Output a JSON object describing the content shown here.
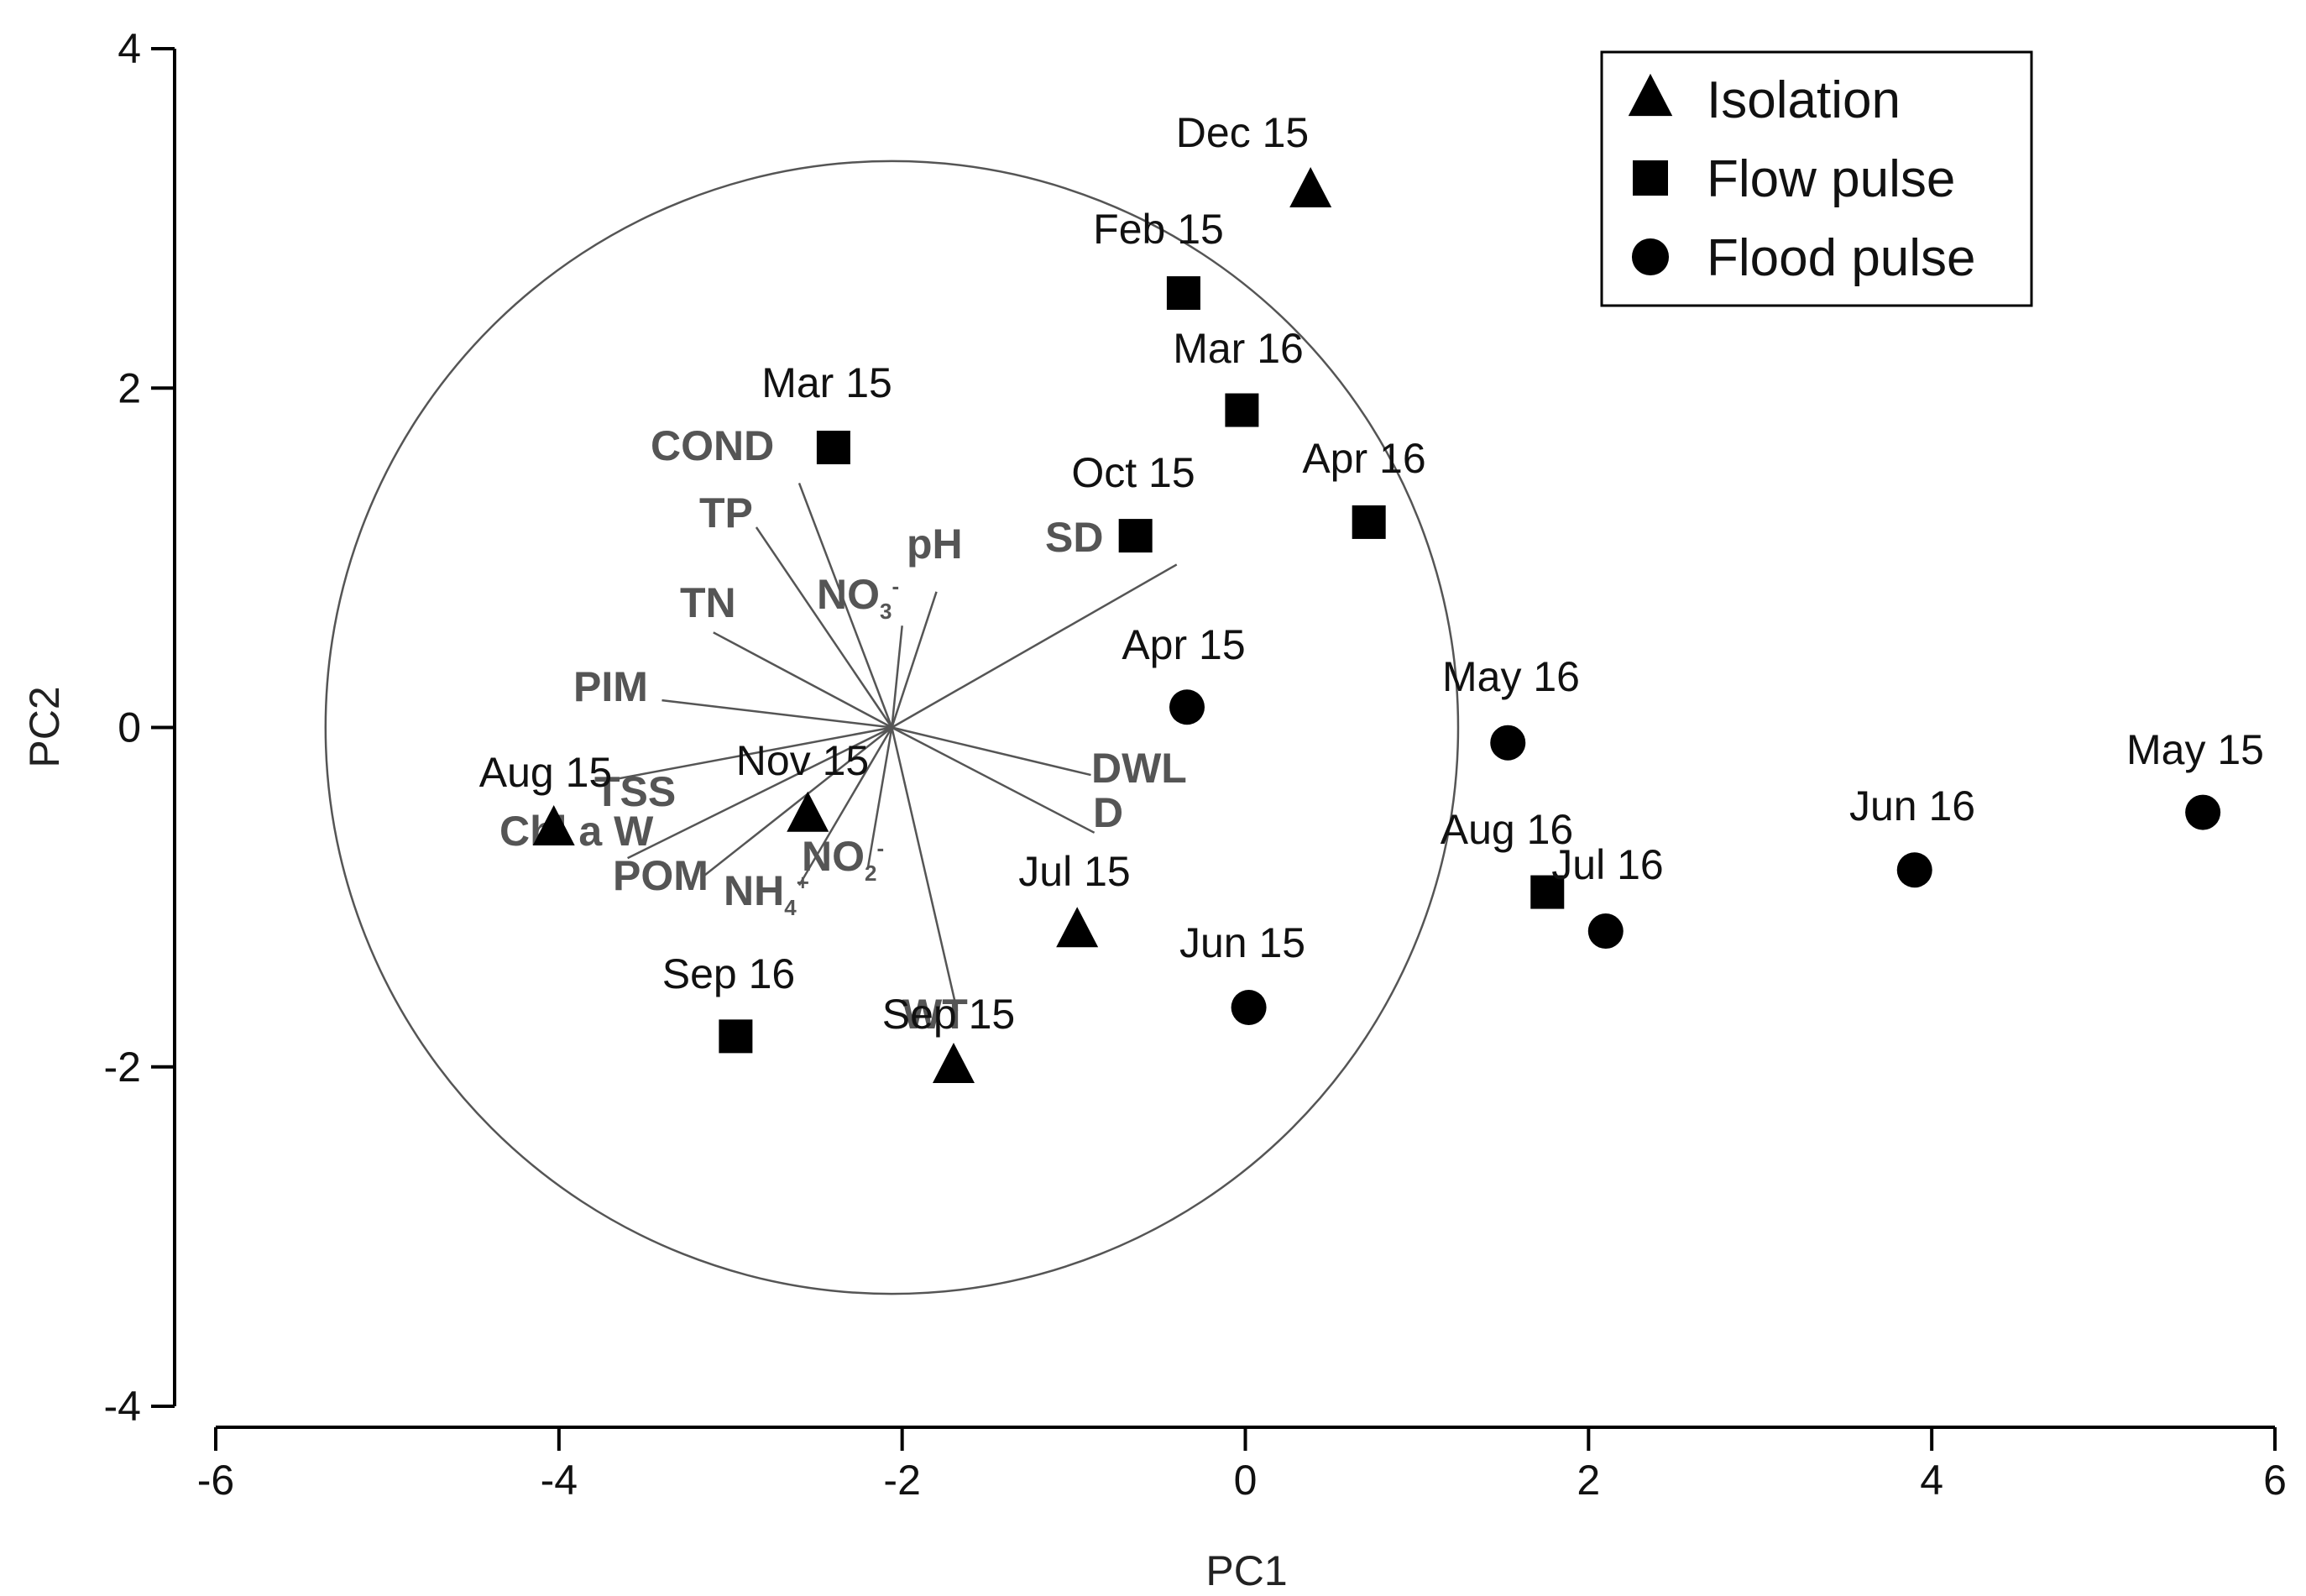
{
  "chart_data": {
    "type": "scatter",
    "xlabel": "PC1",
    "ylabel": "PC2",
    "xlim": [
      -6,
      6
    ],
    "ylim": [
      -4,
      4
    ],
    "xticks": [
      -6,
      -4,
      -2,
      0,
      2,
      4,
      6
    ],
    "yticks": [
      -4,
      -2,
      0,
      2,
      4
    ],
    "legend": {
      "position": "top-right",
      "entries": [
        {
          "name": "Isolation",
          "marker": "triangle"
        },
        {
          "name": "Flow pulse",
          "marker": "square"
        },
        {
          "name": "Flood pulse",
          "marker": "circle"
        }
      ]
    },
    "series": [
      {
        "name": "Isolation",
        "marker": "triangle",
        "points": [
          {
            "label": "Dec 15",
            "x": 0.38,
            "y": 3.16
          },
          {
            "label": "Aug 15",
            "x": -4.03,
            "y": -0.6
          },
          {
            "label": "Nov 15",
            "x": -2.55,
            "y": -0.52
          },
          {
            "label": "Jul 15",
            "x": -0.98,
            "y": -1.2
          },
          {
            "label": "Sep 15",
            "x": -1.7,
            "y": -2.0
          }
        ]
      },
      {
        "name": "Flow pulse",
        "marker": "square",
        "points": [
          {
            "label": "Feb 15",
            "x": -0.36,
            "y": 2.56
          },
          {
            "label": "Mar 16",
            "x": -0.02,
            "y": 1.87
          },
          {
            "label": "Mar 15",
            "x": -2.4,
            "y": 1.65
          },
          {
            "label": "Apr 16",
            "x": 0.72,
            "y": 1.21
          },
          {
            "label": "Oct 15",
            "x": -0.64,
            "y": 1.13
          },
          {
            "label": "Sep 16",
            "x": -2.97,
            "y": -1.82
          },
          {
            "label": "Aug 16",
            "x": 1.76,
            "y": -0.97
          }
        ]
      },
      {
        "name": "Flood pulse",
        "marker": "circle",
        "points": [
          {
            "label": "Apr 15",
            "x": -0.34,
            "y": 0.12
          },
          {
            "label": "May 16",
            "x": 1.53,
            "y": -0.09
          },
          {
            "label": "May 15",
            "x": 5.58,
            "y": -0.5
          },
          {
            "label": "Jun 16",
            "x": 3.9,
            "y": -0.84
          },
          {
            "label": "Jul 16",
            "x": 2.1,
            "y": -1.2
          },
          {
            "label": "Jun 15",
            "x": 0.02,
            "y": -1.65
          }
        ]
      }
    ],
    "correlation_circle": {
      "center": [
        -2.06,
        0.0
      ],
      "radius": 3.3
    },
    "loading_vectors": [
      {
        "label": "COND",
        "tip": [
          -2.6,
          1.44
        ]
      },
      {
        "label": "TP",
        "tip": [
          -2.85,
          1.18
        ]
      },
      {
        "label": "pH",
        "tip": [
          -1.8,
          0.8
        ]
      },
      {
        "label": "SD",
        "tip": [
          -0.4,
          0.96
        ]
      },
      {
        "label": "NO",
        "sub": "3",
        "sup": "-",
        "tip": [
          -2.0,
          0.6
        ]
      },
      {
        "label": "TN",
        "tip": [
          -3.1,
          0.56
        ]
      },
      {
        "label": "PIM",
        "tip": [
          -3.4,
          0.16
        ]
      },
      {
        "label": "DWL",
        "tip": [
          -0.9,
          -0.28
        ]
      },
      {
        "label": "D",
        "tip": [
          -0.88,
          -0.62
        ]
      },
      {
        "label": "TSS",
        "tip": [
          -3.7,
          -0.31
        ]
      },
      {
        "label": "Chl a W",
        "tip": [
          -3.6,
          -0.77
        ]
      },
      {
        "label": "POM",
        "tip": [
          -3.15,
          -0.87
        ]
      },
      {
        "label": "NH",
        "sub": "4",
        "sup": "+",
        "tip": [
          -2.6,
          -0.93
        ]
      },
      {
        "label": "NO",
        "sub": "2",
        "sup": "-",
        "tip": [
          -2.2,
          -0.83
        ]
      },
      {
        "label": "WT",
        "tip": [
          -1.68,
          -1.67
        ]
      }
    ]
  },
  "colors": {
    "marker": "#000000",
    "vector": "#555555",
    "vector_label": "#555555",
    "axis": "#000000",
    "circle": "#555555"
  }
}
